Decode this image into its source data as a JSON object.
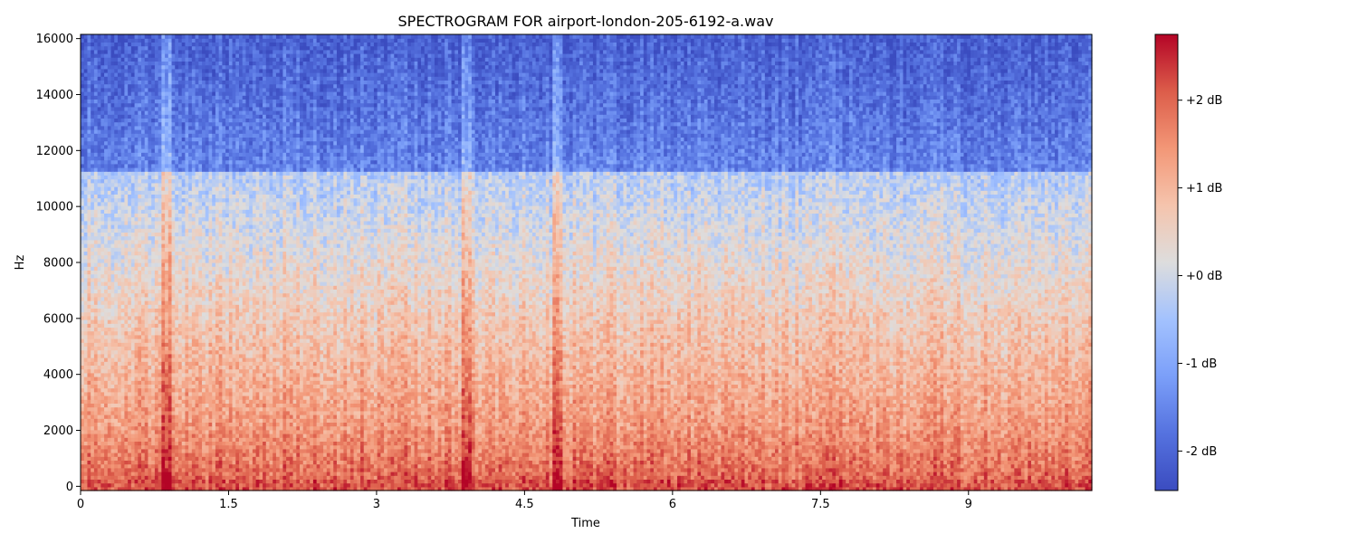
{
  "chart_data": {
    "type": "heatmap",
    "title": "SPECTROGRAM FOR airport-london-205-6192-a.wav",
    "xlabel": "Time",
    "ylabel": "Hz",
    "xlim": [
      0,
      10.25
    ],
    "ylim": [
      -150,
      16150
    ],
    "x_ticks": [
      {
        "value": 0,
        "label": "0"
      },
      {
        "value": 1.5,
        "label": "1.5"
      },
      {
        "value": 3,
        "label": "3"
      },
      {
        "value": 4.5,
        "label": "4.5"
      },
      {
        "value": 6,
        "label": "6"
      },
      {
        "value": 7.5,
        "label": "7.5"
      },
      {
        "value": 9,
        "label": "9"
      }
    ],
    "y_ticks": [
      {
        "value": 0,
        "label": "0"
      },
      {
        "value": 2000,
        "label": "2000"
      },
      {
        "value": 4000,
        "label": "4000"
      },
      {
        "value": 6000,
        "label": "6000"
      },
      {
        "value": 8000,
        "label": "8000"
      },
      {
        "value": 10000,
        "label": "10000"
      },
      {
        "value": 12000,
        "label": "12000"
      },
      {
        "value": 14000,
        "label": "14000"
      },
      {
        "value": 16000,
        "label": "16000"
      }
    ],
    "colorbar": {
      "colormap": "coolwarm",
      "range": [
        -2.45,
        2.75
      ],
      "ticks": [
        {
          "value": 2,
          "label": "+2 dB"
        },
        {
          "value": 1,
          "label": "+1 dB"
        },
        {
          "value": 0,
          "label": "+0 dB"
        },
        {
          "value": -1,
          "label": "-1 dB"
        },
        {
          "value": -2,
          "label": "-2 dB"
        }
      ]
    },
    "grid": false,
    "colors": {
      "cold": "#3b4cc0",
      "neutral": "#dddddd",
      "hot": "#b40426"
    }
  }
}
